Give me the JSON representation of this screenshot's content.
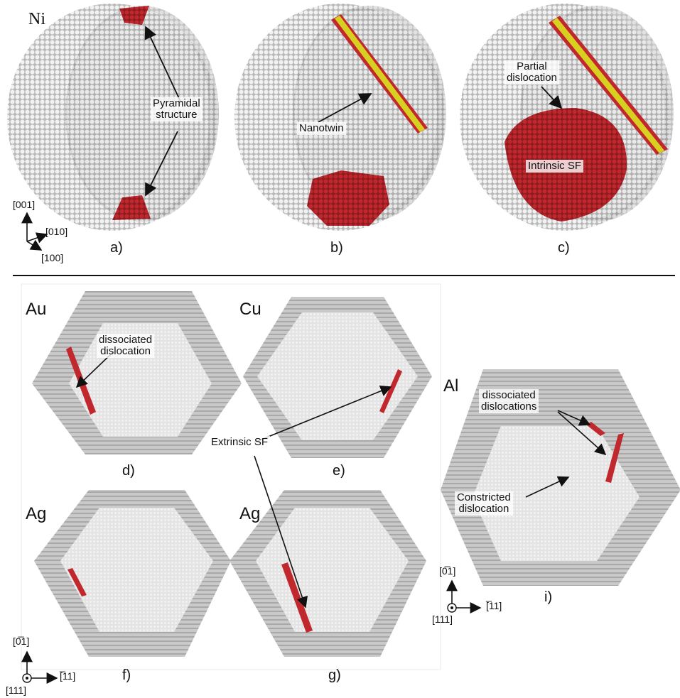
{
  "top": {
    "element": "Ni",
    "panels": [
      {
        "letter": "a)",
        "annotation": "Pyramidal\nstructure"
      },
      {
        "letter": "b)",
        "annotation": "Nanotwin"
      },
      {
        "letter": "c)",
        "annotation_1": "Partial\ndislocation",
        "annotation_2": "Intrinsic SF"
      }
    ],
    "axes": {
      "z": "[001]",
      "y": "[010]",
      "x": "[100]"
    }
  },
  "bottom": {
    "panels": [
      {
        "letter": "d)",
        "element": "Au",
        "annotation": "dissociated\ndislocation"
      },
      {
        "letter": "e)",
        "element": "Cu"
      },
      {
        "letter": "f)",
        "element": "Ag"
      },
      {
        "letter": "g)",
        "element": "Ag"
      },
      {
        "letter": "i)",
        "element": "Al",
        "annotation_1": "dissociated\ndislocations",
        "annotation_2": "Constricted\ndislocation"
      }
    ],
    "shared_annotation": "Extrinsic SF",
    "axes_left": {
      "up": "[0̅1]",
      "right": "[̅11]",
      "origin": "[111]"
    },
    "axes_right": {
      "up": "[0̅1]",
      "right": "[̅11]",
      "origin": "[111]"
    }
  },
  "colors": {
    "atoms": "#d9d9d9",
    "defect": "#c0282e",
    "twin": "#d8d020",
    "bg": "#ffffff"
  }
}
